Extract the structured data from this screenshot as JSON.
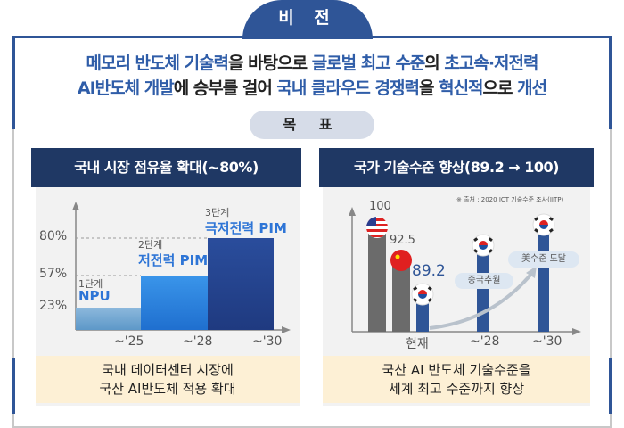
{
  "vision": {
    "tab_label": "비 전",
    "line1": [
      {
        "t": "메모리 반도체 기술력",
        "h": true
      },
      {
        "t": "을 바탕으로 ",
        "h": false
      },
      {
        "t": "글로벌 최고 수준",
        "h": true
      },
      {
        "t": "의 ",
        "h": false
      },
      {
        "t": "초고속·저전력",
        "h": true
      }
    ],
    "line2": [
      {
        "t": "AI반도체 개발",
        "h": true
      },
      {
        "t": "에 승부를 걸어 ",
        "h": false
      },
      {
        "t": "국내 클라우드 경쟁력",
        "h": true
      },
      {
        "t": "을 ",
        "h": false
      },
      {
        "t": "혁신적",
        "h": true
      },
      {
        "t": "으로 ",
        "h": false
      },
      {
        "t": "개선",
        "h": true
      }
    ]
  },
  "goal_label": "목 표",
  "left_panel": {
    "title": "국내 시장 점유율 확대(~80%)",
    "summary_line1": "국내 데이터센터  시장에",
    "summary_line2": "국산 AI반도체  적용 확대"
  },
  "right_panel": {
    "title": "국가 기술수준 향상(89.2 → 100)",
    "source": "※ 출처 : 2020 ICT  기술수준 조사(IITP)",
    "pill_china": "중국추월",
    "pill_us": "美수준 도달",
    "summary_line1": "국산 AI 반도체 기술수준을",
    "summary_line2": "세계 최고 수준까지  향상"
  },
  "chart_data": [
    {
      "type": "bar",
      "title": "국내 시장 점유율 확대(~80%)",
      "categories": [
        "~'25",
        "~'28",
        "~'30"
      ],
      "stages": [
        "1단계",
        "2단계",
        "3단계"
      ],
      "products": [
        "NPU",
        "저전력 PIM",
        "극저전력 PIM"
      ],
      "values": [
        23,
        57,
        80
      ],
      "value_labels": [
        "23%",
        "57%",
        "80%"
      ],
      "ylim": [
        0,
        100
      ]
    },
    {
      "type": "bar",
      "title": "국가 기술수준 향상(89.2 → 100)",
      "categories": [
        "현재",
        "~'28",
        "~'30"
      ],
      "current": [
        {
          "country": "US",
          "value": 100,
          "label": "100"
        },
        {
          "country": "China",
          "value": 92.5,
          "label": "92.5"
        },
        {
          "country": "Korea",
          "value": 89.2,
          "label": "89.2"
        }
      ]
    }
  ],
  "colors": {
    "navy": "#1f3864",
    "blue": "#2f5597",
    "highlight": "#2f5da8",
    "bar1": "#8cb8dc",
    "bar2": "#2e86e0",
    "bar3": "#23428f",
    "gray_bar": "#6b6b6b"
  }
}
